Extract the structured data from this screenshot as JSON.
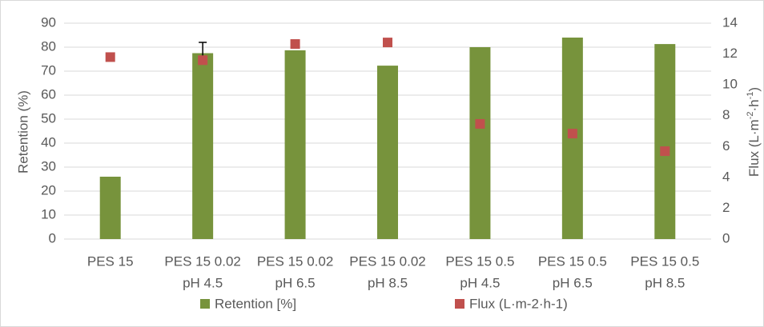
{
  "chart_data": {
    "type": "bar",
    "categories": [
      [
        "PES 15"
      ],
      [
        "PES 15 0.02",
        "pH 4.5"
      ],
      [
        "PES 15 0.02",
        "pH 6.5"
      ],
      [
        "PES 15 0.02",
        "pH 8.5"
      ],
      [
        "PES 15 0.5",
        "pH 4.5"
      ],
      [
        "PES 15 0.5",
        "pH 6.5"
      ],
      [
        "PES 15 0.5",
        "pH 8.5"
      ]
    ],
    "series": [
      {
        "name": "Retention [%]",
        "type": "bar",
        "color": "#77933c",
        "values": [
          26,
          77.5,
          78.7,
          72.3,
          80,
          84,
          81.3
        ],
        "errors": [
          null,
          4.5,
          null,
          null,
          null,
          null,
          null
        ]
      },
      {
        "name": "Flux (L·m-2·h-1)",
        "type": "scatter",
        "axis": "y2",
        "color": "#c0504d",
        "values": [
          11.8,
          11.6,
          12.65,
          12.75,
          7.47,
          6.84,
          5.7
        ]
      }
    ],
    "ylabel": "Retention (%)",
    "y2label": [
      "Flux (L·m",
      "-2",
      "·h",
      "-1",
      ")"
    ],
    "ylim": [
      0,
      90
    ],
    "yticks": [
      0,
      10,
      20,
      30,
      40,
      50,
      60,
      70,
      80,
      90
    ],
    "y2lim": [
      0,
      14
    ],
    "y2ticks": [
      0,
      2,
      4,
      6,
      8,
      10,
      12,
      14
    ],
    "grid": true,
    "legend": "bottom"
  }
}
